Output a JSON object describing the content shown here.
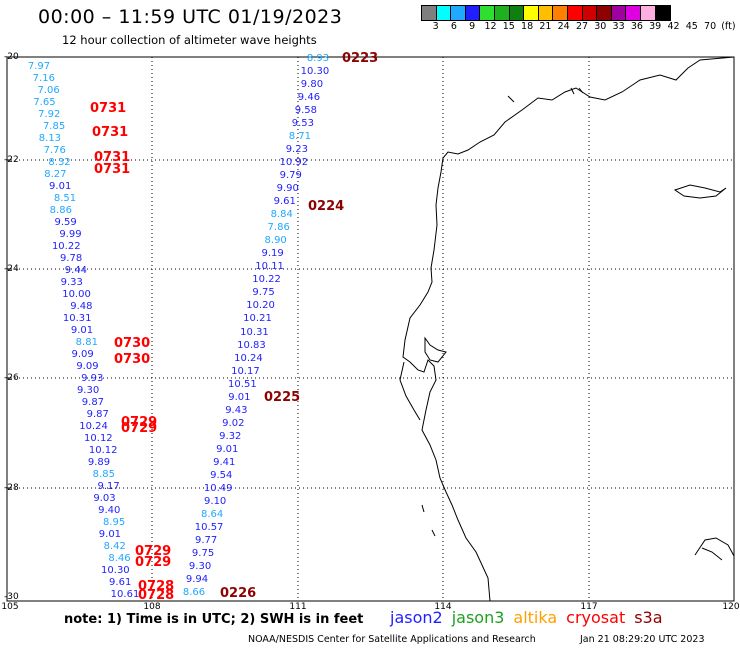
{
  "header": {
    "title": "00:00 – 11:59 UTC 01/19/2023",
    "subtitle": "12 hour collection of altimeter wave heights"
  },
  "legend": {
    "colors": [
      "#7f7f7f",
      "#00ffff",
      "#1fa9ff",
      "#1f1fff",
      "#2fdf2f",
      "#1fb01f",
      "#0f7f0f",
      "#ffff00",
      "#ffbf00",
      "#ff7f00",
      "#ff0000",
      "#cf0000",
      "#8f0000",
      "#9f009f",
      "#df00df",
      "#ffafdf",
      "#000000"
    ],
    "labels": [
      "3",
      "6",
      "9",
      "12",
      "15",
      "18",
      "21",
      "24",
      "27",
      "30",
      "33",
      "36",
      "39",
      "42",
      "45",
      "70",
      "(ft)"
    ]
  },
  "axes": {
    "lat_labels": [
      "-20",
      "-22",
      "-24",
      "-26",
      "-28",
      "-30"
    ],
    "lon_labels": [
      "105",
      "108",
      "111",
      "114",
      "117",
      "120"
    ]
  },
  "tracks": {
    "west": [
      {
        "v": "7.97",
        "c": "#1fa9ff"
      },
      {
        "v": "7.16",
        "c": "#1fa9ff"
      },
      {
        "v": "7.06",
        "c": "#1fa9ff"
      },
      {
        "v": "7.65",
        "c": "#1fa9ff"
      },
      {
        "v": "7.92",
        "c": "#1fa9ff"
      },
      {
        "v": "7.85",
        "c": "#1fa9ff"
      },
      {
        "v": "8.13",
        "c": "#1fa9ff"
      },
      {
        "v": "7.76",
        "c": "#1fa9ff"
      },
      {
        "v": "8.32",
        "c": "#1fa9ff"
      },
      {
        "v": "8.27",
        "c": "#1fa9ff"
      },
      {
        "v": "9.01",
        "c": "#1f1fff"
      },
      {
        "v": "8.51",
        "c": "#1fa9ff"
      },
      {
        "v": "8.86",
        "c": "#1fa9ff"
      },
      {
        "v": "9.59",
        "c": "#1f1fff"
      },
      {
        "v": "9.99",
        "c": "#1f1fff"
      },
      {
        "v": "10.22",
        "c": "#1f1fff"
      },
      {
        "v": "9.78",
        "c": "#1f1fff"
      },
      {
        "v": "9.44",
        "c": "#1f1fff"
      },
      {
        "v": "9.33",
        "c": "#1f1fff"
      },
      {
        "v": "10.00",
        "c": "#1f1fff"
      },
      {
        "v": "9.48",
        "c": "#1f1fff"
      },
      {
        "v": "10.31",
        "c": "#1f1fff"
      },
      {
        "v": "9.01",
        "c": "#1f1fff"
      },
      {
        "v": "8.81",
        "c": "#1fa9ff"
      },
      {
        "v": "9.09",
        "c": "#1f1fff"
      },
      {
        "v": "9.09",
        "c": "#1f1fff"
      },
      {
        "v": "9.93",
        "c": "#1f1fff"
      },
      {
        "v": "9.30",
        "c": "#1f1fff"
      },
      {
        "v": "9.87",
        "c": "#1f1fff"
      },
      {
        "v": "9.87",
        "c": "#1f1fff"
      },
      {
        "v": "10.24",
        "c": "#1f1fff"
      },
      {
        "v": "10.12",
        "c": "#1f1fff"
      },
      {
        "v": "10.12",
        "c": "#1f1fff"
      },
      {
        "v": "9.89",
        "c": "#1f1fff"
      },
      {
        "v": "8.85",
        "c": "#1fa9ff"
      },
      {
        "v": "9.17",
        "c": "#1f1fff"
      },
      {
        "v": "9.03",
        "c": "#1f1fff"
      },
      {
        "v": "9.40",
        "c": "#1f1fff"
      },
      {
        "v": "8.95",
        "c": "#1fa9ff"
      },
      {
        "v": "9.01",
        "c": "#1f1fff"
      },
      {
        "v": "8.42",
        "c": "#1fa9ff"
      },
      {
        "v": "8.46",
        "c": "#1fa9ff"
      },
      {
        "v": "10.30",
        "c": "#1f1fff"
      },
      {
        "v": "9.61",
        "c": "#1f1fff"
      },
      {
        "v": "10.61",
        "c": "#1f1fff"
      }
    ],
    "east": [
      {
        "v": "8.93",
        "c": "#1fa9ff"
      },
      {
        "v": "10.30",
        "c": "#1f1fff"
      },
      {
        "v": "9.80",
        "c": "#1f1fff"
      },
      {
        "v": "9.46",
        "c": "#1f1fff"
      },
      {
        "v": "9.58",
        "c": "#1f1fff"
      },
      {
        "v": "9.53",
        "c": "#1f1fff"
      },
      {
        "v": "8.71",
        "c": "#1fa9ff"
      },
      {
        "v": "9.23",
        "c": "#1f1fff"
      },
      {
        "v": "10.92",
        "c": "#1f1fff"
      },
      {
        "v": "9.79",
        "c": "#1f1fff"
      },
      {
        "v": "9.90",
        "c": "#1f1fff"
      },
      {
        "v": "9.61",
        "c": "#1f1fff"
      },
      {
        "v": "8.84",
        "c": "#1fa9ff"
      },
      {
        "v": "7.86",
        "c": "#1fa9ff"
      },
      {
        "v": "8.90",
        "c": "#1fa9ff"
      },
      {
        "v": "9.19",
        "c": "#1f1fff"
      },
      {
        "v": "10.11",
        "c": "#1f1fff"
      },
      {
        "v": "10.22",
        "c": "#1f1fff"
      },
      {
        "v": "9.75",
        "c": "#1f1fff"
      },
      {
        "v": "10.20",
        "c": "#1f1fff"
      },
      {
        "v": "10.21",
        "c": "#1f1fff"
      },
      {
        "v": "10.31",
        "c": "#1f1fff"
      },
      {
        "v": "10.83",
        "c": "#1f1fff"
      },
      {
        "v": "10.24",
        "c": "#1f1fff"
      },
      {
        "v": "10.17",
        "c": "#1f1fff"
      },
      {
        "v": "10.51",
        "c": "#1f1fff"
      },
      {
        "v": "9.01",
        "c": "#1f1fff"
      },
      {
        "v": "9.43",
        "c": "#1f1fff"
      },
      {
        "v": "9.02",
        "c": "#1f1fff"
      },
      {
        "v": "9.32",
        "c": "#1f1fff"
      },
      {
        "v": "9.01",
        "c": "#1f1fff"
      },
      {
        "v": "9.41",
        "c": "#1f1fff"
      },
      {
        "v": "9.54",
        "c": "#1f1fff"
      },
      {
        "v": "10.49",
        "c": "#1f1fff"
      },
      {
        "v": "9.10",
        "c": "#1f1fff"
      },
      {
        "v": "8.64",
        "c": "#1fa9ff"
      },
      {
        "v": "10.57",
        "c": "#1f1fff"
      },
      {
        "v": "9.77",
        "c": "#1f1fff"
      },
      {
        "v": "9.75",
        "c": "#1f1fff"
      },
      {
        "v": "9.30",
        "c": "#1f1fff"
      },
      {
        "v": "9.94",
        "c": "#1f1fff"
      },
      {
        "v": "8.66",
        "c": "#1fa9ff"
      }
    ]
  },
  "pass_times": [
    {
      "t": "0223",
      "c": "#8f0000"
    },
    {
      "t": "0731",
      "c": "#ff0000"
    },
    {
      "t": "0731",
      "c": "#ff0000"
    },
    {
      "t": "0731",
      "c": "#ff0000"
    },
    {
      "t": "0731",
      "c": "#ff0000"
    },
    {
      "t": "0224",
      "c": "#8f0000"
    },
    {
      "t": "0730",
      "c": "#ff0000"
    },
    {
      "t": "0730",
      "c": "#ff0000"
    },
    {
      "t": "0225",
      "c": "#8f0000"
    },
    {
      "t": "0729",
      "c": "#ff0000"
    },
    {
      "t": "0729",
      "c": "#ff0000"
    },
    {
      "t": "0729",
      "c": "#ff0000"
    },
    {
      "t": "0729",
      "c": "#ff0000"
    },
    {
      "t": "0728",
      "c": "#ff0000"
    },
    {
      "t": "0728",
      "c": "#ff0000"
    },
    {
      "t": "0226",
      "c": "#8f0000"
    }
  ],
  "footer": {
    "note": "note:  1) Time is in UTC;  2) SWH is in feet",
    "satellites": [
      {
        "name": "jason2",
        "color": "#1f1fff"
      },
      {
        "name": "jason3",
        "color": "#1fa01f"
      },
      {
        "name": "altika",
        "color": "#ff9f00"
      },
      {
        "name": "cryosat",
        "color": "#ff0000"
      },
      {
        "name": "s3a",
        "color": "#8f0000"
      }
    ],
    "credit": "NOAA/NESDIS Center for Satellite Applications and Research",
    "timestamp": "Jan 21 08:29:20 UTC 2023"
  }
}
